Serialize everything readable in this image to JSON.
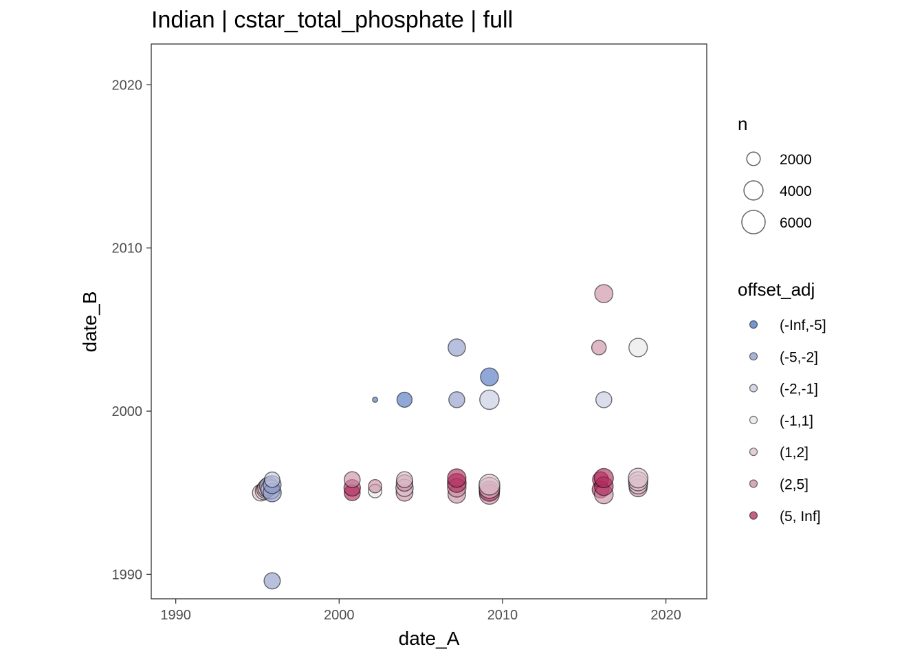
{
  "chart_data": {
    "type": "scatter",
    "title": "Indian | cstar_total_phosphate | full",
    "xlabel": "date_A",
    "ylabel": "date_B",
    "xlim": [
      1988.5,
      2022.5
    ],
    "ylim": [
      1988.5,
      2022.5
    ],
    "x_ticks": [
      1990,
      2000,
      2010,
      2020
    ],
    "y_ticks": [
      1990,
      2000,
      2010,
      2020
    ],
    "grid": false,
    "size_legend": {
      "title": "n",
      "placement": "right",
      "entries": [
        {
          "label": "2000",
          "value": 2000
        },
        {
          "label": "4000",
          "value": 4000
        },
        {
          "label": "6000",
          "value": 6000
        }
      ]
    },
    "color_legend": {
      "title": "offset_adj",
      "placement": "right",
      "entries": [
        {
          "label": "(-Inf,-5]",
          "color": "#4a72c0"
        },
        {
          "label": "(-5,-2]",
          "color": "#8c9ac8"
        },
        {
          "label": "(-2,-1]",
          "color": "#c4c8de"
        },
        {
          "label": "(-1,1]",
          "color": "#e6e6e8"
        },
        {
          "label": "(1,2]",
          "color": "#dcc0cb"
        },
        {
          "label": "(2,5]",
          "color": "#c98ca2"
        },
        {
          "label": "(5, Inf]",
          "color": "#b02a5c"
        }
      ]
    },
    "points": [
      {
        "x": 1995.2,
        "y": 1995.0,
        "n": 3000,
        "group": "(1,2]"
      },
      {
        "x": 1995.4,
        "y": 1995.1,
        "n": 3300,
        "group": "(-1,1]"
      },
      {
        "x": 1995.5,
        "y": 1995.2,
        "n": 3500,
        "group": "(2,5]"
      },
      {
        "x": 1995.6,
        "y": 1995.3,
        "n": 3800,
        "group": "(1,2]"
      },
      {
        "x": 1995.7,
        "y": 1995.4,
        "n": 3800,
        "group": "(-5,-2]"
      },
      {
        "x": 1995.8,
        "y": 1995.2,
        "n": 4000,
        "group": "(-2,-1]"
      },
      {
        "x": 1995.9,
        "y": 1995.0,
        "n": 3600,
        "group": "(-5,-2]"
      },
      {
        "x": 1995.9,
        "y": 1995.5,
        "n": 3500,
        "group": "(-5,-2]"
      },
      {
        "x": 1995.9,
        "y": 1995.8,
        "n": 2600,
        "group": "(-2,-1]"
      },
      {
        "x": 1995.9,
        "y": 1989.6,
        "n": 2900,
        "group": "(-5,-2]"
      },
      {
        "x": 2000.8,
        "y": 1995.0,
        "n": 2800,
        "group": "(5, Inf]"
      },
      {
        "x": 2000.8,
        "y": 1995.3,
        "n": 3000,
        "group": "(5, Inf]"
      },
      {
        "x": 2000.8,
        "y": 1995.8,
        "n": 2800,
        "group": "(2,5]"
      },
      {
        "x": 2002.2,
        "y": 1995.1,
        "n": 2000,
        "group": "(-1,1]"
      },
      {
        "x": 2002.2,
        "y": 1995.4,
        "n": 1900,
        "group": "(2,5]"
      },
      {
        "x": 2002.2,
        "y": 2000.7,
        "n": 300,
        "group": "(-Inf,-5]"
      },
      {
        "x": 2004.0,
        "y": 1995.0,
        "n": 3100,
        "group": "(2,5]"
      },
      {
        "x": 2004.0,
        "y": 1995.3,
        "n": 3300,
        "group": "(1,2]"
      },
      {
        "x": 2004.0,
        "y": 1995.6,
        "n": 3000,
        "group": "(2,5]"
      },
      {
        "x": 2004.0,
        "y": 1995.8,
        "n": 2800,
        "group": "(1,2]"
      },
      {
        "x": 2004.0,
        "y": 2000.7,
        "n": 2500,
        "group": "(-Inf,-5]"
      },
      {
        "x": 2007.2,
        "y": 1994.9,
        "n": 3400,
        "group": "(2,5]"
      },
      {
        "x": 2007.2,
        "y": 1995.3,
        "n": 3700,
        "group": "(2,5]"
      },
      {
        "x": 2007.2,
        "y": 1995.6,
        "n": 3900,
        "group": "(5, Inf]"
      },
      {
        "x": 2007.2,
        "y": 1995.9,
        "n": 3700,
        "group": "(5, Inf]"
      },
      {
        "x": 2007.2,
        "y": 2000.7,
        "n": 2800,
        "group": "(-5,-2]"
      },
      {
        "x": 2007.2,
        "y": 2003.9,
        "n": 3300,
        "group": "(-5,-2]"
      },
      {
        "x": 2009.2,
        "y": 1994.9,
        "n": 4300,
        "group": "(2,5]"
      },
      {
        "x": 2009.2,
        "y": 1995.1,
        "n": 4500,
        "group": "(5, Inf]"
      },
      {
        "x": 2009.2,
        "y": 1995.3,
        "n": 4700,
        "group": "(1,2]"
      },
      {
        "x": 2009.2,
        "y": 1995.5,
        "n": 4700,
        "group": "(1,2]"
      },
      {
        "x": 2009.2,
        "y": 2000.7,
        "n": 4100,
        "group": "(-2,-1]"
      },
      {
        "x": 2009.2,
        "y": 2002.1,
        "n": 3500,
        "group": "(-Inf,-5]"
      },
      {
        "x": 2016.0,
        "y": 1995.2,
        "n": 3100,
        "group": "(5, Inf]"
      },
      {
        "x": 2016.0,
        "y": 1995.8,
        "n": 2800,
        "group": "(5, Inf]"
      },
      {
        "x": 2016.2,
        "y": 1994.9,
        "n": 3800,
        "group": "(2,5]"
      },
      {
        "x": 2016.2,
        "y": 1995.4,
        "n": 3800,
        "group": "(5, Inf]"
      },
      {
        "x": 2016.2,
        "y": 1995.9,
        "n": 4000,
        "group": "(5, Inf]"
      },
      {
        "x": 2015.9,
        "y": 2003.9,
        "n": 2300,
        "group": "(2,5]"
      },
      {
        "x": 2016.2,
        "y": 2000.7,
        "n": 2800,
        "group": "(-2,-1]"
      },
      {
        "x": 2016.2,
        "y": 2007.2,
        "n": 3600,
        "group": "(2,5]"
      },
      {
        "x": 2018.3,
        "y": 1995.3,
        "n": 3500,
        "group": "(2,5]"
      },
      {
        "x": 2018.3,
        "y": 1995.5,
        "n": 3800,
        "group": "(1,2]"
      },
      {
        "x": 2018.3,
        "y": 1995.7,
        "n": 4000,
        "group": "(1,2]"
      },
      {
        "x": 2018.3,
        "y": 1995.9,
        "n": 4200,
        "group": "(1,2]"
      },
      {
        "x": 2018.3,
        "y": 2003.9,
        "n": 3700,
        "group": "(-1,1]"
      }
    ]
  }
}
